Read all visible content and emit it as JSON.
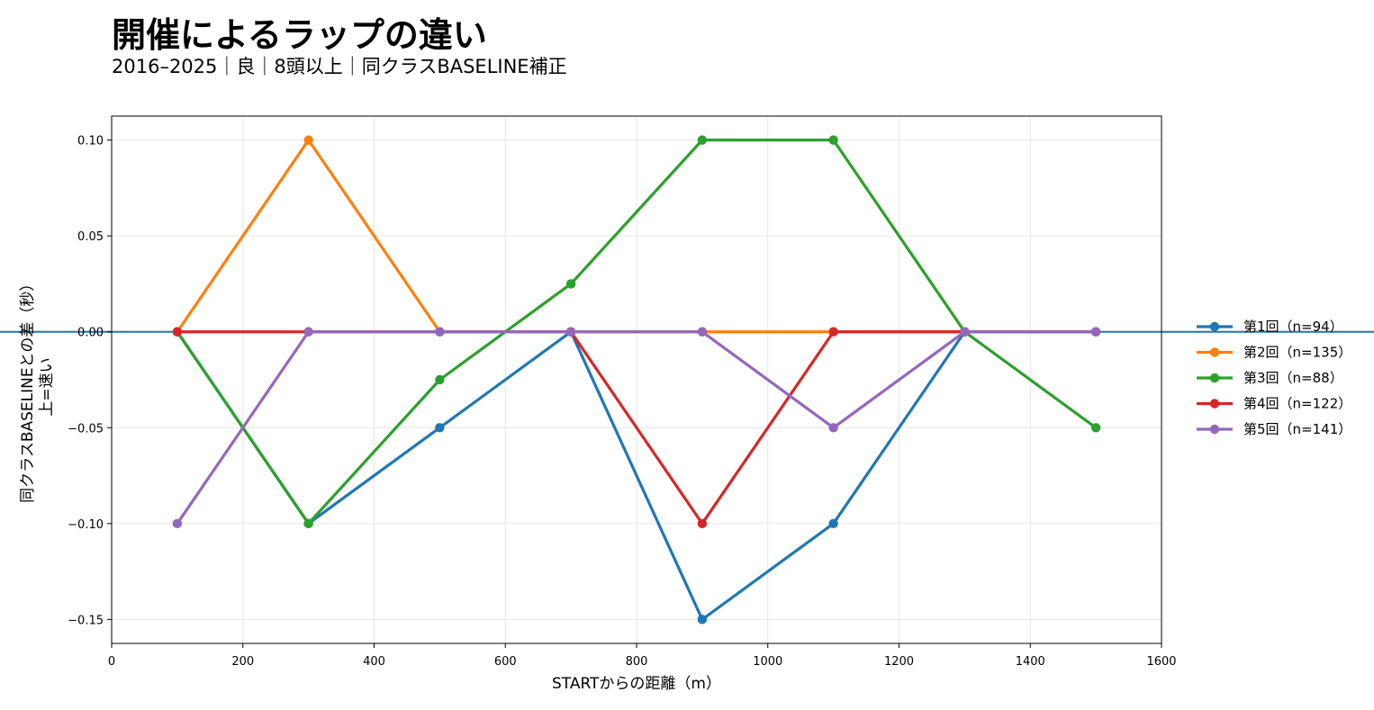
{
  "header": {
    "title": "開催によるラップの違い",
    "subtitle": "2016–2025｜良｜8頭以上｜同クラスBASELINE補正"
  },
  "chart_data": {
    "type": "line",
    "xlabel": "STARTからの距離（m）",
    "ylabel_lines": [
      "同クラスBASELINEとの差（秒）",
      "上=速い"
    ],
    "xlim": [
      0,
      1600
    ],
    "ylim": [
      -0.1625,
      0.1125
    ],
    "x_ticks": [
      0,
      200,
      400,
      600,
      800,
      1000,
      1200,
      1400,
      1600
    ],
    "x_tick_labels": [
      "0",
      "200",
      "400",
      "600",
      "800",
      "1000",
      "1200",
      "1400",
      "1600"
    ],
    "y_ticks": [
      0.1,
      0.05,
      0.0,
      -0.05,
      -0.1,
      -0.15
    ],
    "y_tick_labels": [
      "0.10",
      "0.05",
      "0.00",
      "−0.05",
      "−0.10",
      "−0.15"
    ],
    "grid": true,
    "reference_line": {
      "y": 0,
      "color": "#1f77b4"
    },
    "legend_position": "right",
    "x": [
      100,
      300,
      500,
      700,
      900,
      1100,
      1300,
      1500
    ],
    "series": [
      {
        "name": "第1回（n=94）",
        "color": "#1f77b4",
        "values": [
          0,
          -0.1,
          -0.05,
          0,
          -0.15,
          -0.1,
          0,
          0
        ]
      },
      {
        "name": "第2回（n=135）",
        "color": "#ff7f0e",
        "values": [
          0,
          0.1,
          0,
          0,
          0,
          0,
          0,
          0
        ]
      },
      {
        "name": "第3回（n=88）",
        "color": "#2ca02c",
        "values": [
          0,
          -0.1,
          -0.025,
          0.025,
          0.1,
          0.1,
          0,
          -0.05
        ]
      },
      {
        "name": "第4回（n=122）",
        "color": "#d62728",
        "values": [
          0,
          0,
          0,
          0,
          -0.1,
          0,
          0,
          0
        ]
      },
      {
        "name": "第5回（n=141）",
        "color": "#9467bd",
        "values": [
          -0.1,
          0,
          0,
          0,
          0,
          -0.05,
          0,
          0
        ]
      }
    ]
  }
}
